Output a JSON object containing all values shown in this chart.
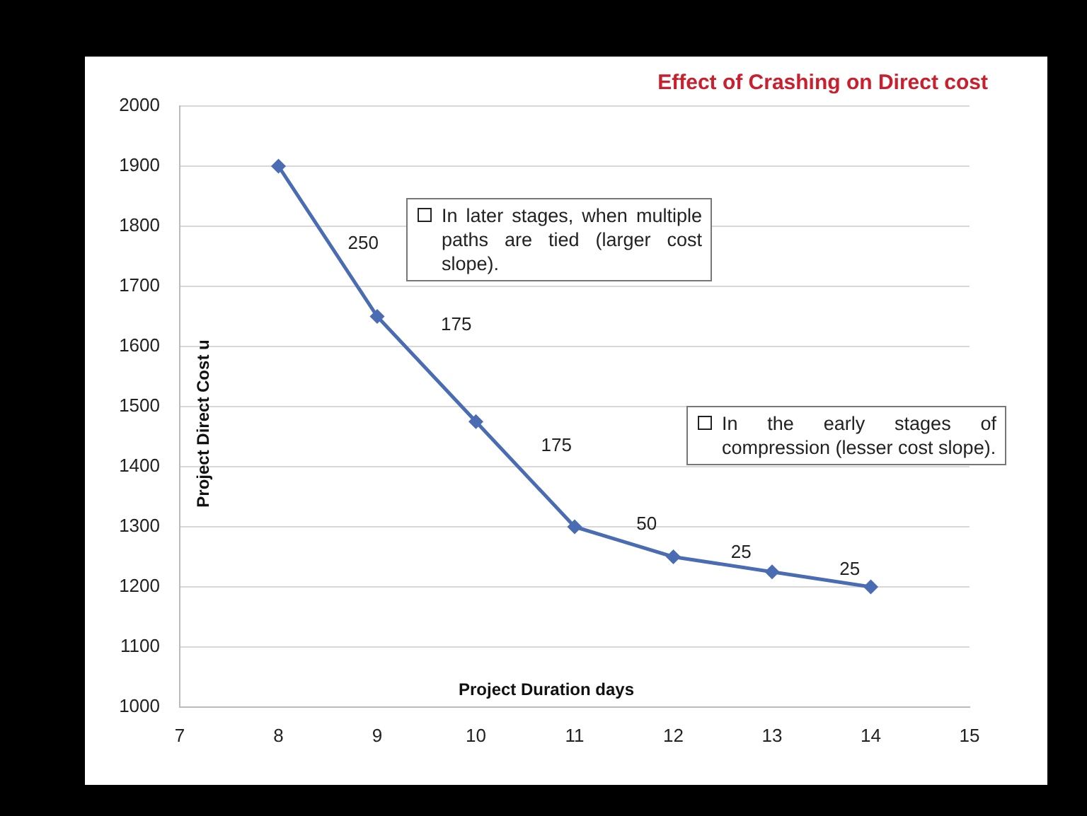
{
  "chart_data": {
    "type": "line",
    "title": "Effect of Crashing on Direct cost",
    "xlabel": "Project Duration days",
    "ylabel": "Project Direct Cost u",
    "x": [
      8,
      9,
      10,
      11,
      12,
      13,
      14
    ],
    "series": [
      {
        "color": "#4a6cb3",
        "values": [
          1900,
          1650,
          1475,
          1300,
          1250,
          1225,
          1200
        ]
      }
    ],
    "xlim": [
      7,
      15
    ],
    "xticks": [
      7,
      8,
      9,
      10,
      11,
      12,
      13,
      14,
      15
    ],
    "ylim": [
      1000,
      2000
    ],
    "yticks": [
      1000,
      1100,
      1200,
      1300,
      1400,
      1500,
      1600,
      1700,
      1800,
      1900,
      2000
    ],
    "grid": "y",
    "marker": "diamond",
    "line_style": "solid",
    "legend": false,
    "annotations": [
      "In later stages, when multiple paths are tied (larger cost slope).",
      "In the early stages of compression (lesser cost slope).",
      "250",
      "175",
      "175",
      "50",
      "25",
      "25"
    ]
  }
}
